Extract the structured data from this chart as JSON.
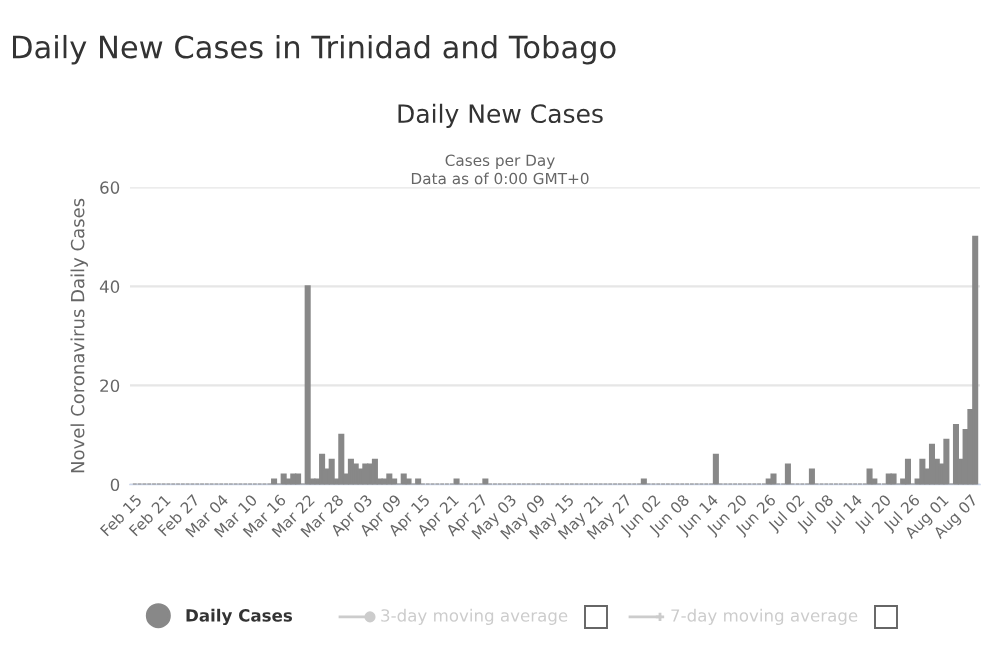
{
  "chart_data": {
    "type": "bar",
    "title": "Daily New Cases",
    "subtitle": "Cases per Day\nData as of 0:00 GMT+0",
    "annotations": [
      "Daily New Cases in Trinidad and Tobago",
      "3-day moving average",
      "7-day moving average"
    ],
    "ylabel": "Novel Coronavirus Daily Cases",
    "categories": [
      "Feb 15",
      null,
      null,
      null,
      null,
      null,
      "Feb 21",
      null,
      null,
      null,
      null,
      null,
      "Feb 27",
      null,
      null,
      null,
      null,
      null,
      "Mar 04",
      null,
      null,
      null,
      null,
      null,
      "Mar 10",
      null,
      null,
      null,
      null,
      null,
      "Mar 16",
      null,
      null,
      null,
      null,
      null,
      "Mar 22",
      null,
      null,
      null,
      null,
      null,
      "Mar 28",
      null,
      null,
      null,
      null,
      null,
      "Apr 03",
      null,
      null,
      null,
      null,
      null,
      "Apr 09",
      null,
      null,
      null,
      null,
      null,
      "Apr 15",
      null,
      null,
      null,
      null,
      null,
      "Apr 21",
      null,
      null,
      null,
      null,
      null,
      "Apr 27",
      null,
      null,
      null,
      null,
      null,
      "May 03",
      null,
      null,
      null,
      null,
      null,
      "May 09",
      null,
      null,
      null,
      null,
      null,
      "May 15",
      null,
      null,
      null,
      null,
      null,
      "May 21",
      null,
      null,
      null,
      null,
      null,
      "May 27",
      null,
      null,
      null,
      null,
      null,
      "Jun 02",
      null,
      null,
      null,
      null,
      null,
      "Jun 08",
      null,
      null,
      null,
      null,
      null,
      "Jun 14",
      null,
      null,
      null,
      null,
      null,
      "Jun 20",
      null,
      null,
      null,
      null,
      null,
      "Jun 26",
      null,
      null,
      null,
      null,
      null,
      "Jul 02",
      null,
      null,
      null,
      null,
      null,
      "Jul 08",
      null,
      null,
      null,
      null,
      null,
      "Jul 14",
      null,
      null,
      null,
      null,
      null,
      "Jul 20",
      null,
      null,
      null,
      null,
      null,
      "Jul 26",
      null,
      null,
      null,
      null,
      null,
      "Aug 01",
      null,
      null,
      null,
      null,
      null,
      "Aug 07",
      null
    ],
    "series": [
      {
        "name": "Daily Cases",
        "color": "#888888",
        "values": [
          0,
          0,
          0,
          0,
          0,
          0,
          0,
          0,
          0,
          0,
          0,
          0,
          0,
          0,
          0,
          0,
          0,
          0,
          0,
          0,
          0,
          0,
          0,
          0,
          0,
          0,
          0,
          0,
          0,
          1,
          0,
          2,
          1,
          2,
          2,
          0,
          40,
          1,
          1,
          6,
          3,
          5,
          1,
          10,
          2,
          5,
          4,
          3,
          4,
          4,
          5,
          1,
          1,
          2,
          1,
          0,
          2,
          1,
          0,
          1,
          0,
          0,
          0,
          0,
          0,
          0,
          0,
          1,
          0,
          0,
          0,
          0,
          0,
          1,
          0,
          0,
          0,
          0,
          0,
          0,
          0,
          0,
          0,
          0,
          0,
          0,
          0,
          0,
          0,
          0,
          0,
          0,
          0,
          0,
          0,
          0,
          0,
          0,
          0,
          0,
          0,
          0,
          0,
          0,
          0,
          0,
          1,
          0,
          0,
          0,
          0,
          0,
          0,
          0,
          0,
          0,
          0,
          0,
          0,
          0,
          0,
          6,
          0,
          0,
          0,
          0,
          0,
          0,
          0,
          0,
          0,
          0,
          1,
          2,
          0,
          0,
          4,
          0,
          0,
          0,
          0,
          3,
          0,
          0,
          0,
          0,
          0,
          0,
          0,
          0,
          0,
          0,
          0,
          3,
          1,
          0,
          0,
          2,
          2,
          0,
          1,
          5,
          0,
          1,
          5,
          3,
          8,
          5,
          4,
          9,
          0,
          12,
          5,
          11,
          15,
          50
        ]
      }
    ],
    "ylim": [
      0,
      60
    ],
    "yticks": [
      0,
      20,
      40,
      60
    ],
    "grid": "y",
    "legend": "bottom"
  }
}
